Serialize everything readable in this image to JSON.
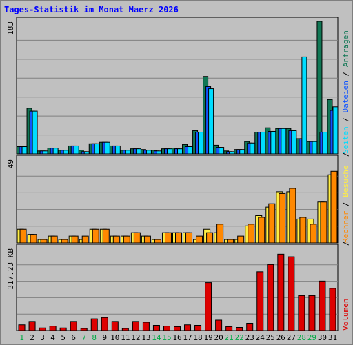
{
  "title": "Tages-Statistik im Monat Maerz 2026",
  "colors": {
    "anfragen": "#117755",
    "dateien": "#1155ff",
    "seiten": "#00ddff",
    "besuche": "#ffee44",
    "rechner": "#ff8800",
    "volumen": "#dd0000",
    "weekend": "#00aa44",
    "weekday": "#000000"
  },
  "chart_data": {
    "type": "bar",
    "categories": [
      "1",
      "2",
      "3",
      "4",
      "5",
      "6",
      "7",
      "8",
      "9",
      "10",
      "11",
      "12",
      "13",
      "14",
      "15",
      "16",
      "17",
      "18",
      "19",
      "20",
      "21",
      "22",
      "23",
      "24",
      "25",
      "26",
      "27",
      "28",
      "29",
      "30",
      "31"
    ],
    "weekend_days": [
      "1",
      "7",
      "8",
      "14",
      "15",
      "21",
      "22",
      "28",
      "29"
    ],
    "panels": [
      {
        "id": "hits",
        "ymax_label": "183",
        "ymax": 183,
        "legend": [
          {
            "text": "Anfragen",
            "color": "#117755"
          },
          {
            "text": "Dateien",
            "color": "#1155ff"
          },
          {
            "text": "Seiten",
            "color": "#00ddff"
          }
        ],
        "separator": "/",
        "series": [
          {
            "name": "Anfragen",
            "color": "#117755",
            "values": [
              10,
              63,
              4,
              8,
              5,
              11,
              5,
              14,
              16,
              11,
              5,
              7,
              6,
              5,
              7,
              8,
              13,
              32,
              107,
              12,
              4,
              6,
              17,
              30,
              36,
              35,
              35,
              21,
              17,
              183,
              75
            ]
          },
          {
            "name": "Dateien",
            "color": "#1155ff",
            "values": [
              10,
              59,
              4,
              8,
              5,
              11,
              3,
              14,
              16,
              11,
              5,
              7,
              5,
              4,
              7,
              7,
              10,
              30,
              93,
              9,
              3,
              6,
              15,
              30,
              31,
              35,
              32,
              21,
              17,
              30,
              60
            ]
          },
          {
            "name": "Seiten",
            "color": "#00ddff",
            "values": [
              10,
              59,
              4,
              8,
              5,
              11,
              3,
              14,
              16,
              11,
              5,
              7,
              5,
              4,
              7,
              7,
              10,
              30,
              90,
              9,
              3,
              6,
              15,
              30,
              31,
              35,
              32,
              134,
              17,
              30,
              65
            ]
          }
        ]
      },
      {
        "id": "visits",
        "ymax_label": "49",
        "ymax": 49,
        "legend": [
          {
            "text": "Besuche",
            "color": "#ffee44"
          },
          {
            "text": "Rechner",
            "color": "#ff8800"
          }
        ],
        "separator": "/",
        "series": [
          {
            "name": "Besuche",
            "color": "#ffee44",
            "values": [
              8,
              5,
              2,
              4,
              2,
              4,
              2,
              8,
              8,
              4,
              4,
              6,
              4,
              2,
              6,
              6,
              6,
              2,
              8,
              6,
              2,
              2,
              10,
              16,
              21,
              30,
              30,
              14,
              14,
              24,
              40
            ]
          },
          {
            "name": "Rechner",
            "color": "#ff8800",
            "values": [
              8,
              5,
              2,
              4,
              2,
              4,
              4,
              8,
              8,
              4,
              4,
              6,
              4,
              2,
              6,
              6,
              6,
              4,
              6,
              11,
              2,
              4,
              11,
              15,
              23,
              29,
              32,
              15,
              11,
              24,
              42
            ]
          }
        ]
      },
      {
        "id": "volume",
        "ymax_label": "317.23 KB",
        "ymax": 317.23,
        "legend": [
          {
            "text": "Volumen",
            "color": "#dd0000"
          }
        ],
        "separator": "/",
        "series": [
          {
            "name": "Volumen",
            "color": "#dd0000",
            "values": [
              22,
              35,
              10,
              17,
              10,
              35,
              8,
              45,
              50,
              35,
              8,
              35,
              32,
              20,
              17,
              15,
              22,
              20,
              185,
              40,
              15,
              12,
              28,
              227,
              255,
              295,
              285,
              135,
              135,
              191,
              163
            ]
          }
        ]
      }
    ]
  }
}
